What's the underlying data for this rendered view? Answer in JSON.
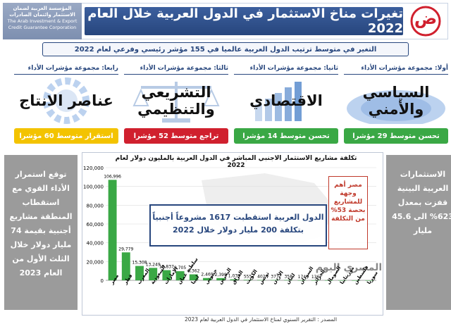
{
  "header": {
    "title": "تغيرات مناخ الاستثمار في الدول العربية خلال العام 2022",
    "subtitle": "التغير في متوسط ترتيب الدول العربية عالميا في 155 مؤشر رئيسي وفرعي لعام 2022",
    "org_name_ar": "المؤسسة العربية لضمان الاستثمار وائتمان الصادرات",
    "org_name_en": "The Arab Investment & Export Credit Guarantee Corporation",
    "logo_glyph": "ض"
  },
  "pillars": [
    {
      "head": "أولا: مجموعة مؤشرات الأداء",
      "name": "السياسي والأمني",
      "badge": "تحسن متوسط 29 مؤشرا",
      "badge_color": "#3aa845"
    },
    {
      "head": "ثانيا: مجموعة مؤشرات الأداء",
      "name": "الاقتصادي",
      "badge": "تحسن متوسط 14 مؤشرا",
      "badge_color": "#3aa845"
    },
    {
      "head": "ثالثا: مجموعة مؤشرات الأداء",
      "name": "التشريعي والتنظيمي",
      "badge": "تراجع متوسط 52 مؤشرا",
      "badge_color": "#d0202e"
    },
    {
      "head": "رابعا: مجموعة مؤشرات الأداء",
      "name": "عناصر الانتاج",
      "badge": "استقرار متوسط 60 مؤشرا",
      "badge_color": "#f3c300"
    }
  ],
  "left_panel": "توقع استمرار الأداء القوي مع استقطاب المنطقة مشاريع أجنبية بقيمة 74 مليار دولار خلال الثلث الأول من العام 2023",
  "right_panel": "الاستثمارات العربية البينية قفزت بمعدل 623% الى 45.6 مليار",
  "callout": "الدول العربية استقطبت 1617 مشروعاً أجنبياً بتكلفة 200 مليار دولار خلال 2022",
  "red_note": "مصر أهم وجهة للمشاريع بحصة 53% من التكلفة",
  "source": "المصدر : التقرير السنوي لمناخ الاستثمار في الدول العربية لعام 2023",
  "watermark": "المصري اليوم",
  "colors": {
    "navy": "#27467d",
    "bar": "#3aa845",
    "panel": "#9b9b9b"
  },
  "chart_data": {
    "type": "bar",
    "title": "تكلفة مشاريع الاستثمار الاجنبي المباشر في الدول العربية بالمليون دولار لعام 2022",
    "categories": [
      "مصر",
      "قطر",
      "المغرب",
      "السعودية",
      "الإمارات",
      "سلطنة عمان",
      "ليبيا",
      "جيبوتي",
      "البحرين",
      "العراق",
      "الكويت",
      "تونس",
      "الأردن",
      "لبنان",
      "السودان",
      "الجزائر",
      "الصومال",
      "موريتانيا",
      "فلسطين",
      "سوريا"
    ],
    "values": [
      106996,
      29779,
      15308,
      13249,
      10837,
      9705,
      6362,
      2469,
      2399,
      1039,
      555,
      402,
      377,
      358,
      174,
      136,
      120,
      90,
      40,
      20
    ],
    "value_labels": [
      "106,996",
      "29,779",
      "15,308",
      "13,249",
      "10,837",
      "9,705",
      "6,362",
      "2,469",
      "2,399",
      "1,039",
      "555",
      "402",
      "377",
      "358",
      "174",
      "136",
      "",
      "",
      "",
      ""
    ],
    "yticks": [
      "0",
      "20,000",
      "40,000",
      "60,000",
      "80,000",
      "100,000",
      "120,000"
    ],
    "ylim": [
      0,
      120000
    ],
    "grid": true
  }
}
